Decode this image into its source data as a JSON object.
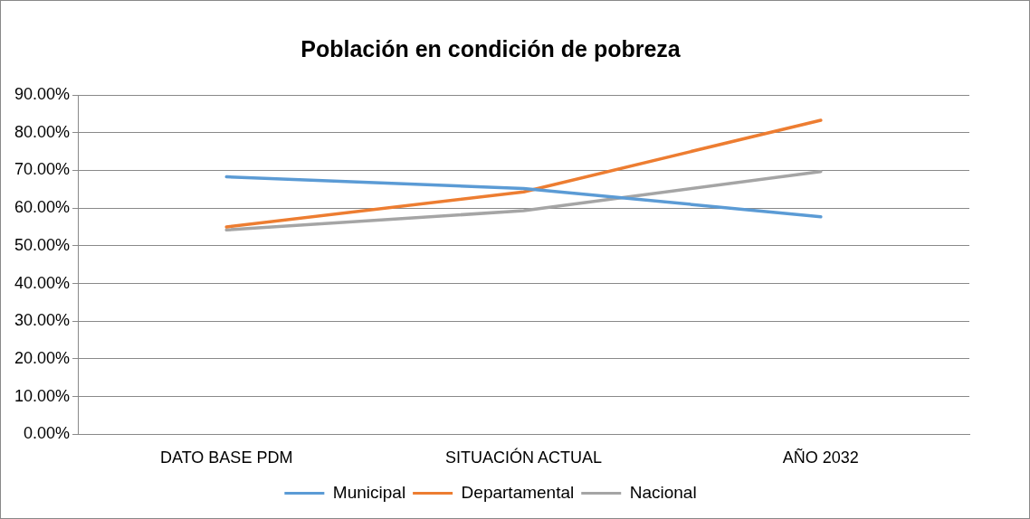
{
  "chart_data": {
    "type": "line",
    "title": "Población en condición de pobreza",
    "categories": [
      "DATO BASE PDM",
      "SITUACIÓN ACTUAL",
      "AÑO 2032"
    ],
    "series": [
      {
        "name": "Municipal",
        "color": "#5b9bd5",
        "values": [
          68.3,
          65.2,
          57.7
        ]
      },
      {
        "name": "Departamental",
        "color": "#ed7d31",
        "values": [
          55.0,
          64.3,
          83.3
        ]
      },
      {
        "name": "Nacional",
        "color": "#a5a5a5",
        "values": [
          54.2,
          59.3,
          69.7
        ]
      }
    ],
    "ylim": [
      0,
      90
    ],
    "yticks": [
      {
        "value": 0,
        "label": "0.00%"
      },
      {
        "value": 10,
        "label": "10.00%"
      },
      {
        "value": 20,
        "label": "20.00%"
      },
      {
        "value": 30,
        "label": "30.00%"
      },
      {
        "value": 40,
        "label": "40.00%"
      },
      {
        "value": 50,
        "label": "50.00%"
      },
      {
        "value": 60,
        "label": "60.00%"
      },
      {
        "value": 70,
        "label": "70.00%"
      },
      {
        "value": 80,
        "label": "80.00%"
      },
      {
        "value": 90,
        "label": "90.00%"
      }
    ],
    "grid": "y",
    "legend": "bottom",
    "marker": "none",
    "line_style": "solid"
  }
}
